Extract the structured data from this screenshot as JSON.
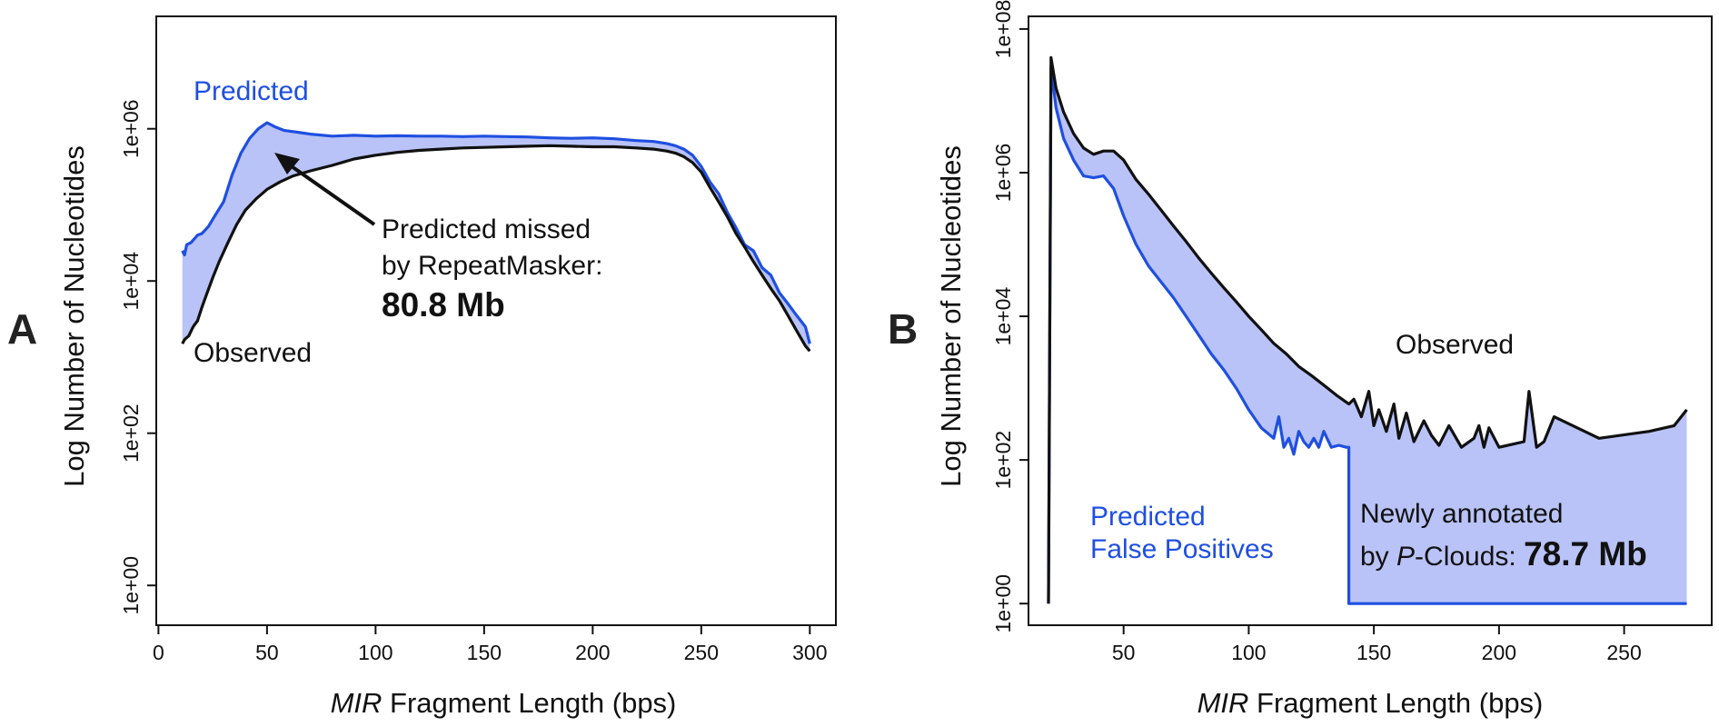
{
  "colors": {
    "observed": "#111111",
    "predicted": "#1f4fe0",
    "fill": "#b9c3f7",
    "background": "#ffffff"
  },
  "chart_data": [
    {
      "panel_label": "A",
      "type": "line",
      "xlabel_italic": "MIR",
      "xlabel_rest": " Fragment Length (bps)",
      "ylabel": "Log Number of Nucleotides",
      "y_scale": "log10",
      "xlim": [
        -1,
        312
      ],
      "ylim": [
        0.3,
        30000000
      ],
      "x_ticks": [
        0,
        50,
        100,
        150,
        200,
        250,
        300
      ],
      "x_tick_labels": [
        "0",
        "50",
        "100",
        "150",
        "200",
        "250",
        "300"
      ],
      "y_ticks": [
        1,
        100,
        10000,
        1000000
      ],
      "y_tick_labels": [
        "1e+00",
        "1e+02",
        "1e+04",
        "1e+06"
      ],
      "grid": false,
      "shading": "area between Predicted and Observed",
      "series": [
        {
          "name": "Predicted",
          "color": "#1f4fe0",
          "x": [
            11,
            12,
            13,
            15,
            18,
            20,
            23,
            26,
            30,
            34,
            38,
            42,
            46,
            50,
            54,
            58,
            64,
            70,
            80,
            90,
            100,
            110,
            120,
            130,
            140,
            150,
            160,
            170,
            180,
            190,
            200,
            210,
            220,
            228,
            234,
            238,
            242,
            246,
            250,
            254,
            258,
            262,
            266,
            270,
            274,
            278,
            282,
            286,
            290,
            294,
            298,
            300
          ],
          "y": [
            25000,
            22000,
            30000,
            32000,
            40000,
            42000,
            52000,
            72000,
            110000,
            250000,
            480000,
            750000,
            1000000,
            1200000,
            1050000,
            950000,
            900000,
            850000,
            800000,
            820000,
            800000,
            810000,
            800000,
            800000,
            790000,
            800000,
            790000,
            780000,
            760000,
            750000,
            760000,
            740000,
            700000,
            680000,
            640000,
            600000,
            540000,
            450000,
            320000,
            200000,
            140000,
            80000,
            50000,
            30000,
            25000,
            15000,
            12000,
            7000,
            5000,
            3500,
            2500,
            1500
          ]
        },
        {
          "name": "Observed",
          "color": "#111111",
          "x": [
            11,
            12,
            14,
            16,
            18,
            20,
            22,
            25,
            28,
            32,
            36,
            40,
            45,
            50,
            56,
            62,
            70,
            80,
            90,
            100,
            110,
            120,
            130,
            140,
            150,
            160,
            170,
            180,
            190,
            200,
            210,
            220,
            228,
            234,
            238,
            242,
            246,
            250,
            254,
            258,
            262,
            266,
            270,
            274,
            278,
            282,
            286,
            290,
            294,
            298,
            300
          ],
          "y": [
            1500,
            1700,
            1900,
            2500,
            3000,
            4500,
            6500,
            11000,
            18000,
            32000,
            55000,
            85000,
            120000,
            160000,
            200000,
            240000,
            280000,
            330000,
            400000,
            450000,
            490000,
            520000,
            540000,
            560000,
            570000,
            580000,
            590000,
            600000,
            590000,
            580000,
            580000,
            560000,
            540000,
            510000,
            480000,
            430000,
            360000,
            270000,
            170000,
            110000,
            70000,
            42000,
            28000,
            18000,
            12000,
            8000,
            5500,
            3500,
            2200,
            1400,
            1200
          ]
        }
      ],
      "annotations": {
        "predicted_label": "Predicted",
        "observed_label": "Observed",
        "arrow_text_line1": "Predicted missed",
        "arrow_text_line2": "by RepeatMasker:",
        "arrow_value": "80.8 Mb"
      }
    },
    {
      "panel_label": "B",
      "type": "line",
      "xlabel_italic": "MIR",
      "xlabel_rest": " Fragment Length (bps)",
      "ylabel": "Log Number of Nucleotides",
      "y_scale": "log10",
      "xlim": [
        12,
        285
      ],
      "ylim": [
        0.5,
        150000000
      ],
      "x_ticks": [
        50,
        100,
        150,
        200,
        250
      ],
      "x_tick_labels": [
        "50",
        "100",
        "150",
        "200",
        "250"
      ],
      "y_ticks": [
        1,
        100,
        10000,
        1000000,
        100000000
      ],
      "y_tick_labels": [
        "1e+00",
        "1e+02",
        "1e+04",
        "1e+06",
        "1e+08"
      ],
      "grid": false,
      "shading": "area between Observed and Predicted",
      "series": [
        {
          "name": "Observed",
          "color": "#111111",
          "x": [
            20,
            21,
            23,
            26,
            30,
            34,
            38,
            42,
            46,
            50,
            55,
            60,
            65,
            70,
            75,
            80,
            85,
            90,
            95,
            100,
            105,
            110,
            115,
            120,
            125,
            130,
            135,
            140,
            142,
            145,
            148,
            150,
            152,
            155,
            158,
            160,
            163,
            166,
            170,
            173,
            176,
            180,
            185,
            190,
            192,
            194,
            196,
            200,
            210,
            212,
            215,
            218,
            222,
            240,
            260,
            270,
            275
          ],
          "y": [
            1,
            40000000,
            15000000,
            7000000,
            3500000,
            2200000,
            1800000,
            2000000,
            2000000,
            1500000,
            800000,
            500000,
            300000,
            180000,
            110000,
            65000,
            40000,
            25000,
            16000,
            10000,
            6500,
            4200,
            3000,
            2000,
            1500,
            1100,
            800,
            600,
            700,
            400,
            900,
            300,
            500,
            250,
            600,
            200,
            450,
            180,
            350,
            220,
            160,
            300,
            150,
            200,
            300,
            150,
            280,
            150,
            180,
            900,
            150,
            180,
            400,
            200,
            250,
            300,
            500
          ]
        },
        {
          "name": "Predicted",
          "color": "#1f4fe0",
          "x": [
            20,
            21,
            23,
            26,
            30,
            34,
            38,
            42,
            46,
            50,
            55,
            60,
            65,
            70,
            75,
            80,
            85,
            90,
            95,
            100,
            105,
            110,
            112,
            114,
            116,
            118,
            120,
            122,
            124,
            126,
            128,
            130,
            133,
            136,
            139,
            140,
            140.01,
            275
          ],
          "y": [
            1,
            30000000,
            8000000,
            3000000,
            1500000,
            900000,
            850000,
            900000,
            600000,
            250000,
            100000,
            50000,
            30000,
            18000,
            10000,
            5500,
            3000,
            1800,
            1000,
            500,
            280,
            200,
            400,
            150,
            200,
            120,
            250,
            180,
            150,
            200,
            150,
            250,
            150,
            160,
            150,
            150,
            1,
            1
          ]
        }
      ],
      "annotations": {
        "observed_label": "Observed",
        "predicted_label_line1": "Predicted",
        "predicted_label_line2": "False Positives",
        "newly_line1": "Newly annotated",
        "newly_line2_prefix": "by ",
        "newly_line2_italic": "P",
        "newly_line2_suffix": "-Clouds: ",
        "newly_value": "78.7 Mb"
      }
    }
  ]
}
